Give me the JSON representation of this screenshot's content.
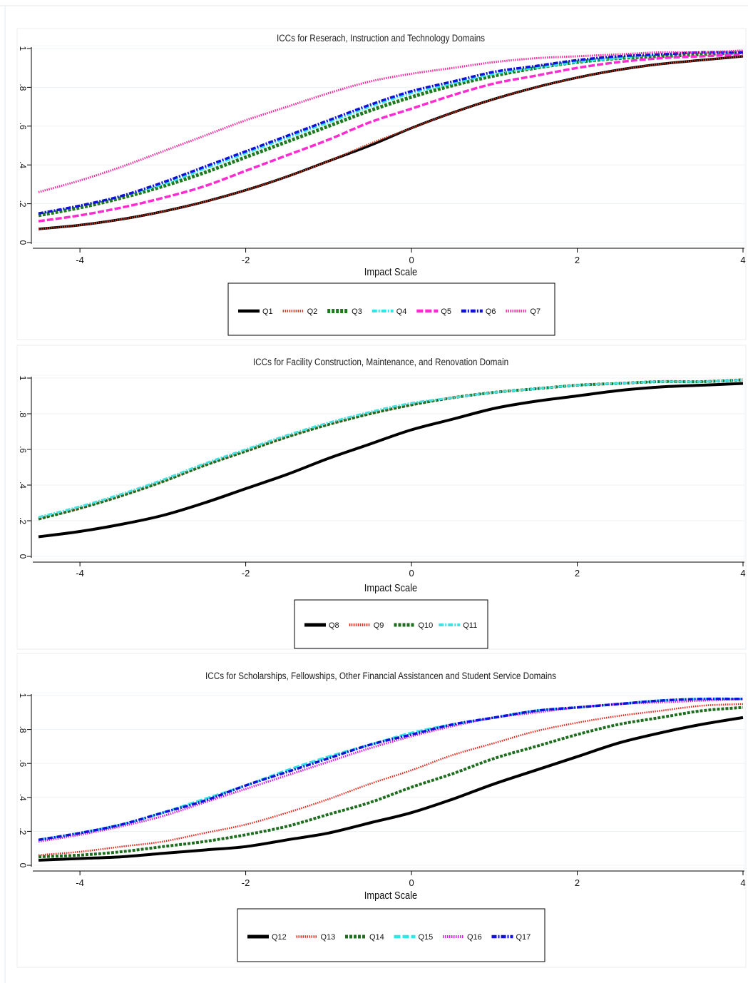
{
  "chart_data": [
    {
      "type": "line",
      "title": "ICCs for Reserach, Instruction and Technology Domains",
      "xlabel": "Impact Scale",
      "ylabel": "",
      "xlim": [
        -4.5,
        4
      ],
      "ylim": [
        0,
        1
      ],
      "x_ticks": [
        "-4",
        "-2",
        "0",
        "2",
        "4"
      ],
      "y_ticks": [
        "0",
        ".2",
        ".4",
        ".6",
        ".8",
        "1"
      ],
      "legend_position": "bottom",
      "x": [
        -4.5,
        -4,
        -3.5,
        -3,
        -2.5,
        -2,
        -1.5,
        -1,
        -0.5,
        0,
        0.5,
        1,
        1.5,
        2,
        2.5,
        3,
        3.5,
        4
      ],
      "series": [
        {
          "name": "Q1",
          "color": "#000000",
          "dash": "solid",
          "width": 3.5,
          "values": [
            0.07,
            0.09,
            0.12,
            0.16,
            0.21,
            0.27,
            0.34,
            0.42,
            0.5,
            0.59,
            0.67,
            0.74,
            0.8,
            0.85,
            0.89,
            0.92,
            0.94,
            0.96
          ]
        },
        {
          "name": "Q2",
          "color": "#c8361a",
          "dash": "dotted",
          "width": 2.5,
          "values": [
            0.07,
            0.09,
            0.12,
            0.16,
            0.21,
            0.27,
            0.34,
            0.42,
            0.51,
            0.59,
            0.67,
            0.74,
            0.8,
            0.85,
            0.89,
            0.92,
            0.94,
            0.96
          ]
        },
        {
          "name": "Q3",
          "color": "#1f7a1f",
          "dash": "dashed",
          "width": 5,
          "values": [
            0.14,
            0.18,
            0.23,
            0.29,
            0.36,
            0.44,
            0.52,
            0.6,
            0.68,
            0.75,
            0.81,
            0.86,
            0.9,
            0.93,
            0.95,
            0.96,
            0.97,
            0.98
          ]
        },
        {
          "name": "Q4",
          "color": "#2ee6e6",
          "dash": "dashdot",
          "width": 3,
          "values": [
            0.15,
            0.19,
            0.24,
            0.3,
            0.38,
            0.46,
            0.54,
            0.62,
            0.7,
            0.77,
            0.82,
            0.87,
            0.9,
            0.93,
            0.95,
            0.97,
            0.98,
            0.98
          ]
        },
        {
          "name": "Q5",
          "color": "#ff2ad0",
          "dash": "longdash",
          "width": 3.5,
          "values": [
            0.11,
            0.14,
            0.18,
            0.23,
            0.29,
            0.37,
            0.45,
            0.53,
            0.62,
            0.69,
            0.76,
            0.82,
            0.86,
            0.9,
            0.93,
            0.95,
            0.96,
            0.97
          ]
        },
        {
          "name": "Q6",
          "color": "#1010d8",
          "dash": "dashdot",
          "width": 3.5,
          "values": [
            0.15,
            0.19,
            0.24,
            0.31,
            0.39,
            0.47,
            0.55,
            0.63,
            0.71,
            0.78,
            0.83,
            0.88,
            0.91,
            0.94,
            0.96,
            0.97,
            0.98,
            0.98
          ]
        },
        {
          "name": "Q7",
          "color": "#ee2aa0",
          "dash": "dotted",
          "width": 3,
          "values": [
            0.26,
            0.32,
            0.39,
            0.47,
            0.55,
            0.63,
            0.7,
            0.77,
            0.83,
            0.87,
            0.9,
            0.93,
            0.95,
            0.96,
            0.97,
            0.98,
            0.98,
            0.99
          ]
        }
      ]
    },
    {
      "type": "line",
      "title": "ICCs for Facility Construction, Maintenance, and Renovation Domain",
      "xlabel": "Impact Scale",
      "ylabel": "",
      "xlim": [
        -4.5,
        4
      ],
      "ylim": [
        0,
        1
      ],
      "x_ticks": [
        "-4",
        "-2",
        "0",
        "2",
        "4"
      ],
      "y_ticks": [
        "0",
        ".2",
        ".4",
        ".6",
        ".8",
        "1"
      ],
      "legend_position": "bottom",
      "x": [
        -4.5,
        -4,
        -3.5,
        -3,
        -2.5,
        -2,
        -1.5,
        -1,
        -0.5,
        0,
        0.5,
        1,
        1.5,
        2,
        2.5,
        3,
        3.5,
        4
      ],
      "series": [
        {
          "name": "Q8",
          "color": "#000000",
          "dash": "solid",
          "width": 4,
          "values": [
            0.11,
            0.14,
            0.18,
            0.23,
            0.3,
            0.38,
            0.46,
            0.55,
            0.63,
            0.71,
            0.77,
            0.83,
            0.87,
            0.9,
            0.93,
            0.95,
            0.96,
            0.97
          ]
        },
        {
          "name": "Q9",
          "color": "#e0281e",
          "dash": "dotted",
          "width": 3,
          "values": [
            0.21,
            0.27,
            0.34,
            0.42,
            0.51,
            0.59,
            0.67,
            0.74,
            0.8,
            0.85,
            0.89,
            0.92,
            0.94,
            0.96,
            0.97,
            0.98,
            0.98,
            0.99
          ]
        },
        {
          "name": "Q10",
          "color": "#1f6e1f",
          "dash": "dashed",
          "width": 4,
          "values": [
            0.21,
            0.27,
            0.34,
            0.42,
            0.51,
            0.59,
            0.67,
            0.74,
            0.8,
            0.85,
            0.89,
            0.92,
            0.94,
            0.96,
            0.97,
            0.98,
            0.98,
            0.99
          ]
        },
        {
          "name": "Q11",
          "color": "#46e0e0",
          "dash": "dashdot",
          "width": 3,
          "values": [
            0.22,
            0.28,
            0.35,
            0.43,
            0.52,
            0.6,
            0.68,
            0.75,
            0.81,
            0.86,
            0.89,
            0.92,
            0.94,
            0.96,
            0.97,
            0.98,
            0.98,
            0.99
          ]
        }
      ]
    },
    {
      "type": "line",
      "title": "ICCs for Scholarships, Fellowships, Other Financial Assistancen and Student Service Domains",
      "xlabel": "Impact Scale",
      "ylabel": "",
      "xlim": [
        -4.5,
        4
      ],
      "ylim": [
        0,
        1
      ],
      "x_ticks": [
        "-4",
        "-2",
        "0",
        "2",
        "4"
      ],
      "y_ticks": [
        "0",
        ".2",
        ".4",
        ".6",
        ".8",
        "1"
      ],
      "legend_position": "bottom",
      "x": [
        -4.5,
        -4,
        -3.5,
        -3,
        -2.5,
        -2,
        -1.5,
        -1,
        -0.5,
        0,
        0.5,
        1,
        1.5,
        2,
        2.5,
        3,
        3.5,
        4
      ],
      "series": [
        {
          "name": "Q12",
          "color": "#000000",
          "dash": "solid",
          "width": 4,
          "values": [
            0.03,
            0.04,
            0.05,
            0.07,
            0.09,
            0.11,
            0.15,
            0.19,
            0.25,
            0.31,
            0.39,
            0.48,
            0.56,
            0.64,
            0.72,
            0.78,
            0.83,
            0.87
          ]
        },
        {
          "name": "Q13",
          "color": "#e0281e",
          "dash": "dotted",
          "width": 2.5,
          "values": [
            0.06,
            0.08,
            0.11,
            0.14,
            0.19,
            0.24,
            0.31,
            0.39,
            0.48,
            0.56,
            0.65,
            0.72,
            0.79,
            0.84,
            0.88,
            0.91,
            0.94,
            0.95
          ]
        },
        {
          "name": "Q14",
          "color": "#1f6e1f",
          "dash": "dashed",
          "width": 4,
          "values": [
            0.05,
            0.06,
            0.08,
            0.11,
            0.14,
            0.18,
            0.23,
            0.3,
            0.37,
            0.46,
            0.54,
            0.63,
            0.7,
            0.77,
            0.83,
            0.87,
            0.91,
            0.93
          ]
        },
        {
          "name": "Q15",
          "color": "#2ee6e6",
          "dash": "longdash",
          "width": 3.5,
          "values": [
            0.15,
            0.19,
            0.24,
            0.31,
            0.39,
            0.47,
            0.56,
            0.64,
            0.71,
            0.78,
            0.83,
            0.87,
            0.91,
            0.93,
            0.95,
            0.97,
            0.98,
            0.98
          ]
        },
        {
          "name": "Q16",
          "color": "#d21ee6",
          "dash": "dotted",
          "width": 3,
          "values": [
            0.14,
            0.18,
            0.23,
            0.29,
            0.37,
            0.45,
            0.53,
            0.61,
            0.69,
            0.76,
            0.82,
            0.87,
            0.9,
            0.93,
            0.95,
            0.96,
            0.97,
            0.98
          ]
        },
        {
          "name": "Q17",
          "color": "#1010d8",
          "dash": "dashdot",
          "width": 3.5,
          "values": [
            0.15,
            0.19,
            0.24,
            0.31,
            0.38,
            0.47,
            0.55,
            0.63,
            0.71,
            0.77,
            0.83,
            0.87,
            0.91,
            0.93,
            0.95,
            0.97,
            0.98,
            0.98
          ]
        }
      ]
    }
  ]
}
